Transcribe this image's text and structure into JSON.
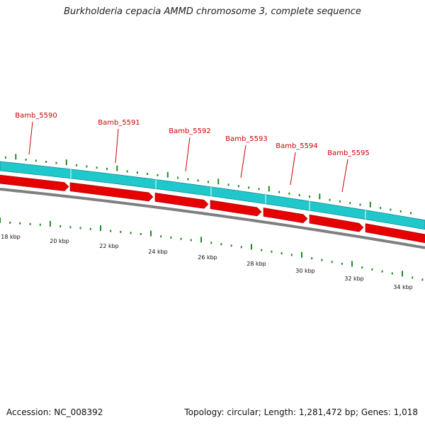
{
  "title": "Burkholderia cepacia AMMD chromosome 3, complete sequence",
  "accession": "Accession: NC_008392",
  "summary": "Topology: circular; Length: 1,281,472 bp; Genes: 1,018",
  "colors": {
    "cds_strand": "#20c8cc",
    "gene_arrow": "#e60000",
    "backbone": "#7f7f7f",
    "ticks": "#1f8a1f",
    "gene_label": "#cc0000",
    "kbp_label": "#111111"
  },
  "genes": [
    {
      "name": "Bamb_5590"
    },
    {
      "name": "Bamb_5591"
    },
    {
      "name": "Bamb_5592"
    },
    {
      "name": "Bamb_5593"
    },
    {
      "name": "Bamb_5594"
    },
    {
      "name": "Bamb_5595"
    }
  ],
  "kbp_labels": [
    "18 kbp",
    "20 kbp",
    "22 kbp",
    "24 kbp",
    "26 kbp",
    "28 kbp",
    "30 kbp",
    "32 kbp",
    "34 kbp"
  ]
}
